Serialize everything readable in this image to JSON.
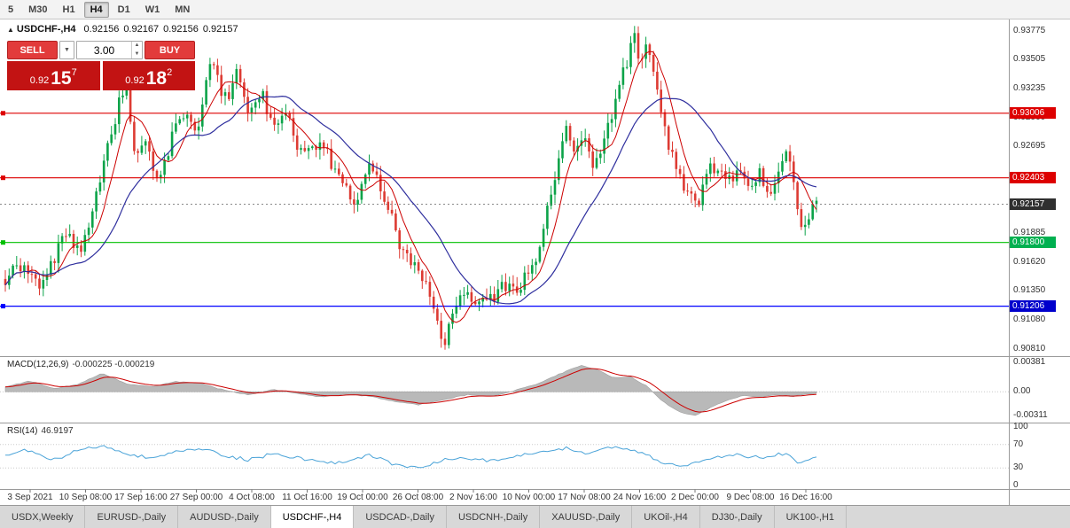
{
  "toolbar": {
    "timeframes": [
      "5",
      "M30",
      "H1",
      "H4",
      "D1",
      "W1",
      "MN"
    ],
    "active_timeframe": "H4"
  },
  "chart": {
    "symbol_line": {
      "icon": "▲",
      "symbol": "USDCHF-,H4",
      "open": "0.92156",
      "high": "0.92167",
      "low": "0.92156",
      "close": "0.92157"
    },
    "trade_panel": {
      "sell_label": "SELL",
      "buy_label": "BUY",
      "volume": "3.00",
      "sell_price": {
        "prefix": "0.92",
        "big": "15",
        "sup": "7"
      },
      "buy_price": {
        "prefix": "0.92",
        "big": "18",
        "sup": "2"
      }
    },
    "price_axis": [
      "0.93775",
      "0.93505",
      "0.93235",
      "0.92960",
      "0.92695",
      "0.91885",
      "0.91620",
      "0.91350",
      "0.91080",
      "0.90810"
    ],
    "badges": [
      {
        "value": "0.93006",
        "bg": "#dd0000"
      },
      {
        "value": "0.92403",
        "bg": "#dd0000"
      },
      {
        "value": "0.92157",
        "bg": "#2f2f2f"
      },
      {
        "value": "0.91800",
        "bg": "#00b050"
      },
      {
        "value": "0.91206",
        "bg": "#0000cc"
      }
    ],
    "time_axis": [
      "3 Sep 2021",
      "10 Sep 08:00",
      "17 Sep 16:00",
      "27 Sep 00:00",
      "4 Oct 08:00",
      "11 Oct 16:00",
      "19 Oct 00:00",
      "26 Oct 08:00",
      "2 Nov 16:00",
      "10 Nov 00:00",
      "17 Nov 08:00",
      "24 Nov 16:00",
      "2 Dec 00:00",
      "9 Dec 08:00",
      "16 Dec 16:00"
    ]
  },
  "chart_data": {
    "type": "candlestick",
    "symbol": "USDCHF-",
    "timeframe": "H4",
    "ohlc_current": {
      "open": 0.92156,
      "high": 0.92167,
      "low": 0.92156,
      "close": 0.92157
    },
    "price_range": [
      0.9074,
      0.9388
    ],
    "current_price": 0.92157,
    "hlines": [
      {
        "price": 0.93006,
        "color": "#dd0000"
      },
      {
        "price": 0.92403,
        "color": "#dd0000"
      },
      {
        "price": 0.918,
        "color": "#00c000"
      },
      {
        "price": 0.91206,
        "color": "#0000ff"
      }
    ],
    "colors": {
      "up": "#0ca349",
      "down": "#dd3b33",
      "ma_fast": "#cc0000",
      "ma_slow": "#2f2f9e",
      "macd_fill": "#b9b9b9",
      "macd_signal": "#cc0000",
      "rsi": "#4aa3d8"
    },
    "price_path": [
      [
        0.0,
        0.9146
      ],
      [
        0.015,
        0.916
      ],
      [
        0.03,
        0.9152
      ],
      [
        0.045,
        0.9138
      ],
      [
        0.06,
        0.9165
      ],
      [
        0.075,
        0.919
      ],
      [
        0.085,
        0.9175
      ],
      [
        0.095,
        0.917
      ],
      [
        0.11,
        0.9222
      ],
      [
        0.125,
        0.9265
      ],
      [
        0.14,
        0.931
      ],
      [
        0.15,
        0.9326
      ],
      [
        0.16,
        0.9258
      ],
      [
        0.172,
        0.9282
      ],
      [
        0.185,
        0.924
      ],
      [
        0.2,
        0.9258
      ],
      [
        0.212,
        0.9302
      ],
      [
        0.225,
        0.9296
      ],
      [
        0.238,
        0.9288
      ],
      [
        0.252,
        0.9352
      ],
      [
        0.262,
        0.933
      ],
      [
        0.272,
        0.9312
      ],
      [
        0.285,
        0.9338
      ],
      [
        0.3,
        0.9302
      ],
      [
        0.315,
        0.9322
      ],
      [
        0.33,
        0.9288
      ],
      [
        0.345,
        0.9302
      ],
      [
        0.36,
        0.927
      ],
      [
        0.375,
        0.9262
      ],
      [
        0.39,
        0.9272
      ],
      [
        0.405,
        0.925
      ],
      [
        0.42,
        0.9232
      ],
      [
        0.432,
        0.9218
      ],
      [
        0.445,
        0.9252
      ],
      [
        0.46,
        0.924
      ],
      [
        0.475,
        0.9205
      ],
      [
        0.49,
        0.9168
      ],
      [
        0.505,
        0.9158
      ],
      [
        0.52,
        0.9142
      ],
      [
        0.532,
        0.9105
      ],
      [
        0.542,
        0.9086
      ],
      [
        0.552,
        0.912
      ],
      [
        0.565,
        0.9135
      ],
      [
        0.578,
        0.9118
      ],
      [
        0.59,
        0.9136
      ],
      [
        0.602,
        0.9126
      ],
      [
        0.615,
        0.914
      ],
      [
        0.628,
        0.9132
      ],
      [
        0.64,
        0.9146
      ],
      [
        0.652,
        0.9162
      ],
      [
        0.665,
        0.92
      ],
      [
        0.678,
        0.9245
      ],
      [
        0.69,
        0.9288
      ],
      [
        0.7,
        0.9262
      ],
      [
        0.712,
        0.928
      ],
      [
        0.724,
        0.9248
      ],
      [
        0.736,
        0.9268
      ],
      [
        0.748,
        0.9298
      ],
      [
        0.762,
        0.9338
      ],
      [
        0.775,
        0.9372
      ],
      [
        0.783,
        0.9348
      ],
      [
        0.793,
        0.9365
      ],
      [
        0.805,
        0.9318
      ],
      [
        0.818,
        0.9268
      ],
      [
        0.83,
        0.9242
      ],
      [
        0.842,
        0.9226
      ],
      [
        0.855,
        0.9216
      ],
      [
        0.868,
        0.9256
      ],
      [
        0.88,
        0.9242
      ],
      [
        0.892,
        0.9236
      ],
      [
        0.905,
        0.9252
      ],
      [
        0.918,
        0.9232
      ],
      [
        0.93,
        0.9246
      ],
      [
        0.942,
        0.9228
      ],
      [
        0.952,
        0.9242
      ],
      [
        0.962,
        0.9268
      ],
      [
        0.972,
        0.9238
      ],
      [
        0.982,
        0.9186
      ],
      [
        0.992,
        0.9205
      ],
      [
        1.0,
        0.9216
      ]
    ],
    "macd": {
      "label": "MACD(12,26,9)",
      "values_label": "-0.000225 -0.000219",
      "axis": [
        "0.00381",
        "0.00",
        "-0.00311"
      ],
      "range": [
        0.0045,
        -0.004
      ],
      "path": [
        [
          0.0,
          0.0006
        ],
        [
          0.03,
          0.0014
        ],
        [
          0.06,
          0.0004
        ],
        [
          0.09,
          0.001
        ],
        [
          0.12,
          0.0024
        ],
        [
          0.15,
          0.001
        ],
        [
          0.18,
          0.0007
        ],
        [
          0.21,
          0.0013
        ],
        [
          0.24,
          0.0011
        ],
        [
          0.27,
          0.0002
        ],
        [
          0.3,
          -0.0004
        ],
        [
          0.33,
          0.0003
        ],
        [
          0.36,
          -0.0002
        ],
        [
          0.39,
          -0.0007
        ],
        [
          0.42,
          -0.0003
        ],
        [
          0.45,
          -0.0006
        ],
        [
          0.48,
          -0.0013
        ],
        [
          0.51,
          -0.0017
        ],
        [
          0.54,
          -0.001
        ],
        [
          0.57,
          -0.0004
        ],
        [
          0.6,
          -0.0006
        ],
        [
          0.63,
          0.0002
        ],
        [
          0.66,
          0.0012
        ],
        [
          0.69,
          0.0026
        ],
        [
          0.71,
          0.0034
        ],
        [
          0.73,
          0.0028
        ],
        [
          0.75,
          0.0018
        ],
        [
          0.77,
          0.002
        ],
        [
          0.79,
          0.0008
        ],
        [
          0.81,
          -0.0012
        ],
        [
          0.83,
          -0.0026
        ],
        [
          0.85,
          -0.0031
        ],
        [
          0.87,
          -0.002
        ],
        [
          0.89,
          -0.0011
        ],
        [
          0.91,
          -0.0005
        ],
        [
          0.93,
          -0.0007
        ],
        [
          0.95,
          -0.0004
        ],
        [
          0.97,
          -0.0006
        ],
        [
          0.99,
          -0.0003
        ],
        [
          1.0,
          -0.000225
        ]
      ]
    },
    "rsi": {
      "label": "RSI(14)",
      "value_label": "46.9197",
      "axis": [
        "100",
        "70",
        "30",
        "0"
      ],
      "levels": [
        70,
        30
      ],
      "path": [
        [
          0.0,
          52
        ],
        [
          0.03,
          61
        ],
        [
          0.06,
          44
        ],
        [
          0.09,
          60
        ],
        [
          0.12,
          68
        ],
        [
          0.15,
          54
        ],
        [
          0.18,
          47
        ],
        [
          0.21,
          57
        ],
        [
          0.24,
          64
        ],
        [
          0.27,
          51
        ],
        [
          0.3,
          44
        ],
        [
          0.33,
          54
        ],
        [
          0.36,
          47
        ],
        [
          0.39,
          42
        ],
        [
          0.42,
          38
        ],
        [
          0.45,
          52
        ],
        [
          0.48,
          36
        ],
        [
          0.51,
          30
        ],
        [
          0.54,
          44
        ],
        [
          0.57,
          47
        ],
        [
          0.6,
          41
        ],
        [
          0.63,
          50
        ],
        [
          0.66,
          58
        ],
        [
          0.69,
          64
        ],
        [
          0.72,
          55
        ],
        [
          0.75,
          66
        ],
        [
          0.78,
          58
        ],
        [
          0.81,
          40
        ],
        [
          0.84,
          34
        ],
        [
          0.87,
          46
        ],
        [
          0.9,
          52
        ],
        [
          0.93,
          48
        ],
        [
          0.96,
          55
        ],
        [
          0.98,
          38
        ],
        [
          1.0,
          46.9
        ]
      ]
    }
  },
  "tabs": {
    "items": [
      "USDX,Weekly",
      "EURUSD-,Daily",
      "AUDUSD-,Daily",
      "USDCHF-,H4",
      "USDCAD-,Daily",
      "USDCNH-,Daily",
      "XAUUSD-,Daily",
      "UKOil-,H4",
      "DJ30-,Daily",
      "UK100-,H1"
    ],
    "active": "USDCHF-,H4"
  }
}
